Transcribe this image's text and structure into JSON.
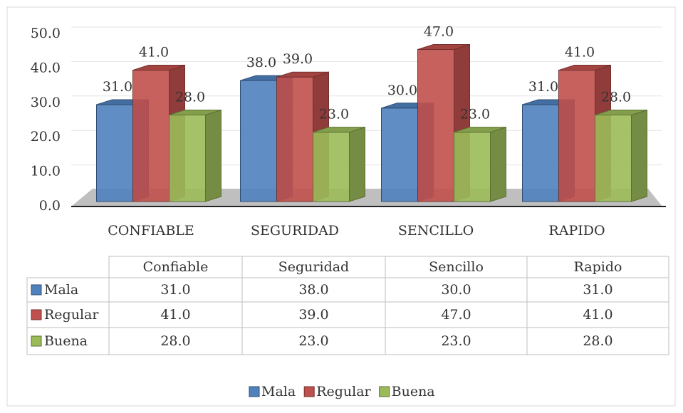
{
  "chart_data": {
    "type": "bar3d",
    "categories": [
      "CONFIABLE",
      "SEGURIDAD",
      "SENCILLO",
      "RAPIDO"
    ],
    "series": [
      {
        "name": "Mala",
        "color": "#4f81bd",
        "values": [
          31,
          38,
          30,
          31
        ],
        "value_labels": [
          "31.0",
          "38.0",
          "30.0",
          "31.0"
        ]
      },
      {
        "name": "Regular",
        "color": "#c0504d",
        "values": [
          41,
          39,
          47,
          41
        ],
        "value_labels": [
          "41.0",
          "39.0",
          "47.0",
          "41.0"
        ]
      },
      {
        "name": "Buena",
        "color": "#9bbb59",
        "values": [
          28,
          23,
          23,
          28
        ],
        "value_labels": [
          "28.0",
          "23.0",
          "23.0",
          "28.0"
        ]
      }
    ],
    "ylim": [
      0,
      50
    ],
    "yticks": [
      {
        "value": 0,
        "label": "0.0"
      },
      {
        "value": 10,
        "label": "10.0"
      },
      {
        "value": 20,
        "label": "20.0"
      },
      {
        "value": 30,
        "label": "30.0"
      },
      {
        "value": 40,
        "label": "40.0"
      },
      {
        "value": 50,
        "label": "50.0"
      }
    ],
    "grid": true,
    "legend": "bottom",
    "table": {
      "columns": [
        "Confiable",
        "Seguridad",
        "Sencillo",
        "Rapido"
      ]
    }
  }
}
